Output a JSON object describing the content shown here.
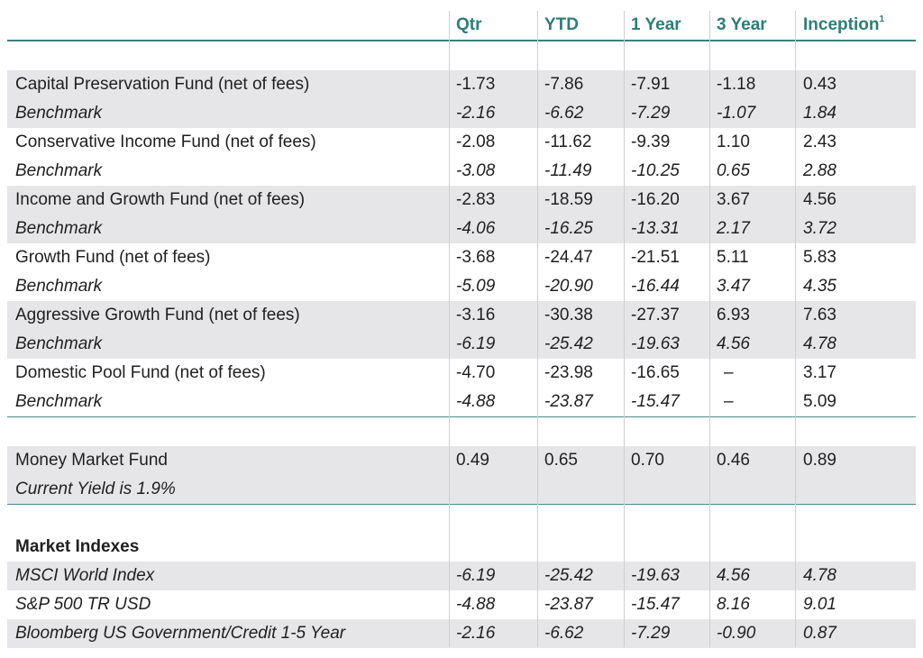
{
  "columns": [
    "Qtr",
    "YTD",
    "1 Year",
    "3 Year",
    "Inception"
  ],
  "inception_footnote": "1",
  "fund_rows": [
    {
      "label": "Capital Preservation Fund (net of fees)",
      "values": [
        "-1.73",
        "-7.86",
        "-7.91",
        "-1.18",
        "0.43"
      ],
      "italic": false,
      "shade": true
    },
    {
      "label": "Benchmark",
      "values": [
        "-2.16",
        "-6.62",
        "-7.29",
        "-1.07",
        "1.84"
      ],
      "italic": true,
      "shade": true
    },
    {
      "label": "Conservative Income Fund (net of fees)",
      "values": [
        "-2.08",
        "-11.62",
        "-9.39",
        "1.10",
        "2.43"
      ],
      "italic": false,
      "shade": false
    },
    {
      "label": "Benchmark",
      "values": [
        "-3.08",
        "-11.49",
        "-10.25",
        "0.65",
        "2.88"
      ],
      "italic": true,
      "shade": false
    },
    {
      "label": "Income and Growth Fund (net of fees)",
      "values": [
        "-2.83",
        "-18.59",
        "-16.20",
        "3.67",
        "4.56"
      ],
      "italic": false,
      "shade": true
    },
    {
      "label": "Benchmark",
      "values": [
        "-4.06",
        "-16.25",
        "-13.31",
        "2.17",
        "3.72"
      ],
      "italic": true,
      "shade": true
    },
    {
      "label": "Growth Fund (net of fees)",
      "values": [
        "-3.68",
        "-24.47",
        "-21.51",
        "5.11",
        "5.83"
      ],
      "italic": false,
      "shade": false
    },
    {
      "label": "Benchmark",
      "values": [
        "-5.09",
        "-20.90",
        "-16.44",
        "3.47",
        "4.35"
      ],
      "italic": true,
      "shade": false
    },
    {
      "label": "Aggressive Growth Fund (net of fees)",
      "values": [
        "-3.16",
        "-30.38",
        "-27.37",
        "6.93",
        "7.63"
      ],
      "italic": false,
      "shade": true
    },
    {
      "label": "Benchmark",
      "values": [
        "-6.19",
        "-25.42",
        "-19.63",
        "4.56",
        "4.78"
      ],
      "italic": true,
      "shade": true
    },
    {
      "label": "Domestic Pool Fund (net of fees)",
      "values": [
        "-4.70",
        "-23.98",
        "-16.65",
        "–",
        "3.17"
      ],
      "italic": false,
      "shade": false
    },
    {
      "label": "Benchmark",
      "values": [
        "-4.88",
        "-23.87",
        "-15.47",
        "–",
        "5.09"
      ],
      "italic": true,
      "shade": false,
      "italic_cols": [
        true,
        true,
        true,
        false,
        false
      ]
    }
  ],
  "money_market": {
    "label": "Money Market Fund",
    "values": [
      "0.49",
      "0.65",
      "0.70",
      "0.46",
      "0.89"
    ],
    "sublabel": "Current Yield is 1.9%"
  },
  "market_indexes": {
    "heading": "Market Indexes",
    "rows": [
      {
        "label": "MSCI World Index",
        "values": [
          "-6.19",
          "-25.42",
          "-19.63",
          "4.56",
          "4.78"
        ],
        "shade": true
      },
      {
        "label": "S&P 500 TR USD",
        "values": [
          "-4.88",
          "-23.87",
          "-15.47",
          "8.16",
          "9.01"
        ],
        "shade": false
      },
      {
        "label": "Bloomberg US Government/Credit 1-5 Year",
        "values": [
          "-2.16",
          "-6.62",
          "-7.29",
          "-0.90",
          "0.87"
        ],
        "shade": true
      }
    ]
  }
}
